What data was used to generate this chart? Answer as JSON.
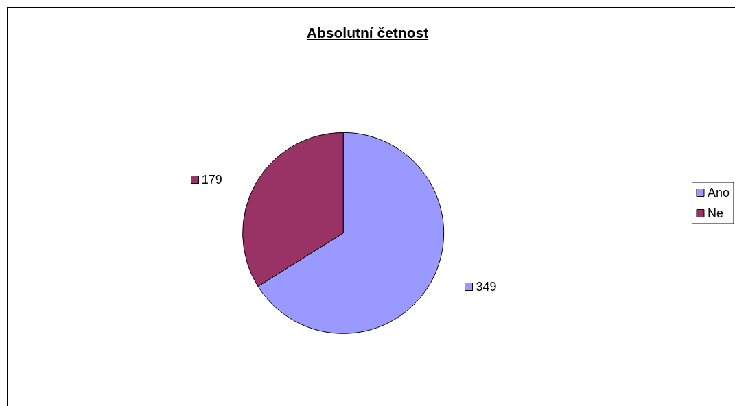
{
  "chart_data": {
    "type": "pie",
    "title": "Absolutní četnost",
    "categories": [
      "Ano",
      "Ne"
    ],
    "values": [
      349,
      179
    ],
    "colors": [
      "#9999ff",
      "#993366"
    ],
    "data_labels": true,
    "legend": "right"
  }
}
